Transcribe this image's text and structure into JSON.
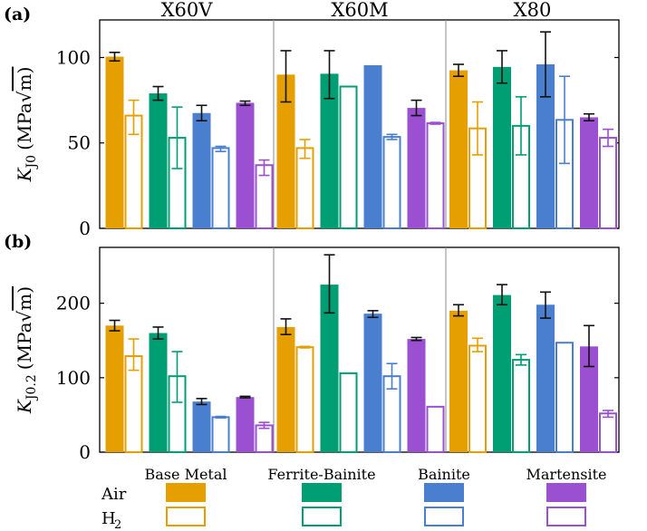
{
  "chart_data": {
    "type": "bar",
    "grades": [
      "X60V",
      "X60M",
      "X80"
    ],
    "microstructures": [
      "Base Metal",
      "Ferrite-Bainite",
      "Bainite",
      "Martensite"
    ],
    "colors": {
      "Base Metal": "#E69F00",
      "Ferrite-Bainite": "#009E73",
      "Bainite": "#4A7FD0",
      "Martensite": "#9B4FD1"
    },
    "environments": [
      "Air",
      "H2"
    ],
    "legend": {
      "air_label": "Air",
      "h2_label": "H",
      "h2_subscript": "2"
    },
    "panels": [
      {
        "label": "(a)",
        "ylabel_main": "K",
        "ylabel_sub": "J0",
        "ylabel_unit_pre": "(MPa",
        "ylabel_unit_post": "m)",
        "ylim": [
          0,
          122
        ],
        "yticks": [
          0,
          50,
          100
        ],
        "ytick_labels": [
          "0",
          "50",
          "100"
        ],
        "groups": [
          {
            "grade": "X60V",
            "micro": "Base Metal",
            "air": 100.5,
            "air_err": [
              98,
              103
            ],
            "h2": 66,
            "h2_err": [
              55,
              75
            ]
          },
          {
            "grade": "X60V",
            "micro": "Ferrite-Bainite",
            "air": 79,
            "air_err": [
              75,
              83
            ],
            "h2": 53,
            "h2_err": [
              35,
              71
            ]
          },
          {
            "grade": "X60V",
            "micro": "Bainite",
            "air": 67.5,
            "air_err": [
              63,
              72
            ],
            "h2": 47,
            "h2_err": [
              45,
              48
            ]
          },
          {
            "grade": "X60V",
            "micro": "Martensite",
            "air": 73.5,
            "air_err": [
              72,
              74.5
            ],
            "h2": 37,
            "h2_err": [
              31,
              40
            ]
          },
          {
            "grade": "X60M",
            "micro": "Base Metal",
            "air": 90,
            "air_err": [
              74,
              104
            ],
            "h2": 47,
            "h2_err": [
              41,
              52
            ]
          },
          {
            "grade": "X60M",
            "micro": "Ferrite-Bainite",
            "air": 90.5,
            "air_err": [
              76,
              104
            ],
            "h2": 83,
            "h2_err": [
              83,
              83
            ]
          },
          {
            "grade": "X60M",
            "micro": "Bainite",
            "air": 95.5,
            "air_err": [
              95.5,
              95.5
            ],
            "h2": 53.5,
            "h2_err": [
              52,
              55
            ]
          },
          {
            "grade": "X60M",
            "micro": "Martensite",
            "air": 70.5,
            "air_err": [
              66,
              75
            ],
            "h2": 61.5,
            "h2_err": [
              61,
              62
            ]
          },
          {
            "grade": "X80",
            "micro": "Base Metal",
            "air": 92.5,
            "air_err": [
              89,
              96
            ],
            "h2": 58.5,
            "h2_err": [
              43,
              74
            ]
          },
          {
            "grade": "X80",
            "micro": "Ferrite-Bainite",
            "air": 94.5,
            "air_err": [
              85,
              104
            ],
            "h2": 60,
            "h2_err": [
              43,
              77
            ]
          },
          {
            "grade": "X80",
            "micro": "Bainite",
            "air": 96,
            "air_err": [
              77,
              115
            ],
            "h2": 63.5,
            "h2_err": [
              38,
              89
            ]
          },
          {
            "grade": "X80",
            "micro": "Martensite",
            "air": 65,
            "air_err": [
              63,
              67
            ],
            "h2": 53,
            "h2_err": [
              48,
              58
            ]
          }
        ]
      },
      {
        "label": "(b)",
        "ylabel_main": "K",
        "ylabel_sub": "J0.2",
        "ylabel_unit_pre": "(MPa",
        "ylabel_unit_post": "m)",
        "ylim": [
          0,
          275
        ],
        "yticks": [
          0,
          100,
          200
        ],
        "ytick_labels": [
          "0",
          "100",
          "200"
        ],
        "groups": [
          {
            "grade": "X60V",
            "micro": "Base Metal",
            "air": 170,
            "air_err": [
              163,
              177
            ],
            "h2": 129,
            "h2_err": [
              110,
              152
            ]
          },
          {
            "grade": "X60V",
            "micro": "Ferrite-Bainite",
            "air": 160,
            "air_err": [
              152,
              168
            ],
            "h2": 102,
            "h2_err": [
              67,
              135
            ]
          },
          {
            "grade": "X60V",
            "micro": "Bainite",
            "air": 68,
            "air_err": [
              64,
              72
            ],
            "h2": 47,
            "h2_err": [
              46,
              48
            ]
          },
          {
            "grade": "X60V",
            "micro": "Martensite",
            "air": 74,
            "air_err": [
              73,
              75
            ],
            "h2": 36,
            "h2_err": [
              32,
              40
            ]
          },
          {
            "grade": "X60M",
            "micro": "Base Metal",
            "air": 168,
            "air_err": [
              158,
              179
            ],
            "h2": 141,
            "h2_err": [
              140,
              142
            ]
          },
          {
            "grade": "X60M",
            "micro": "Ferrite-Bainite",
            "air": 225,
            "air_err": [
              187,
              265
            ],
            "h2": 106,
            "h2_err": [
              106,
              106
            ]
          },
          {
            "grade": "X60M",
            "micro": "Bainite",
            "air": 186,
            "air_err": [
              181,
              190
            ],
            "h2": 102,
            "h2_err": [
              85,
              119
            ]
          },
          {
            "grade": "X60M",
            "micro": "Martensite",
            "air": 152,
            "air_err": [
              150,
              154
            ],
            "h2": 61,
            "h2_err": [
              61,
              61
            ]
          },
          {
            "grade": "X80",
            "micro": "Base Metal",
            "air": 190,
            "air_err": [
              183,
              198
            ],
            "h2": 143,
            "h2_err": [
              135,
              153
            ]
          },
          {
            "grade": "X80",
            "micro": "Ferrite-Bainite",
            "air": 211,
            "air_err": [
              198,
              225
            ],
            "h2": 124,
            "h2_err": [
              117,
              131
            ]
          },
          {
            "grade": "X80",
            "micro": "Bainite",
            "air": 198,
            "air_err": [
              180,
              215
            ],
            "h2": 147,
            "h2_err": [
              147,
              147
            ]
          },
          {
            "grade": "X80",
            "micro": "Martensite",
            "air": 142,
            "air_err": [
              115,
              170
            ],
            "h2": 52,
            "h2_err": [
              47,
              56
            ]
          }
        ]
      }
    ]
  }
}
